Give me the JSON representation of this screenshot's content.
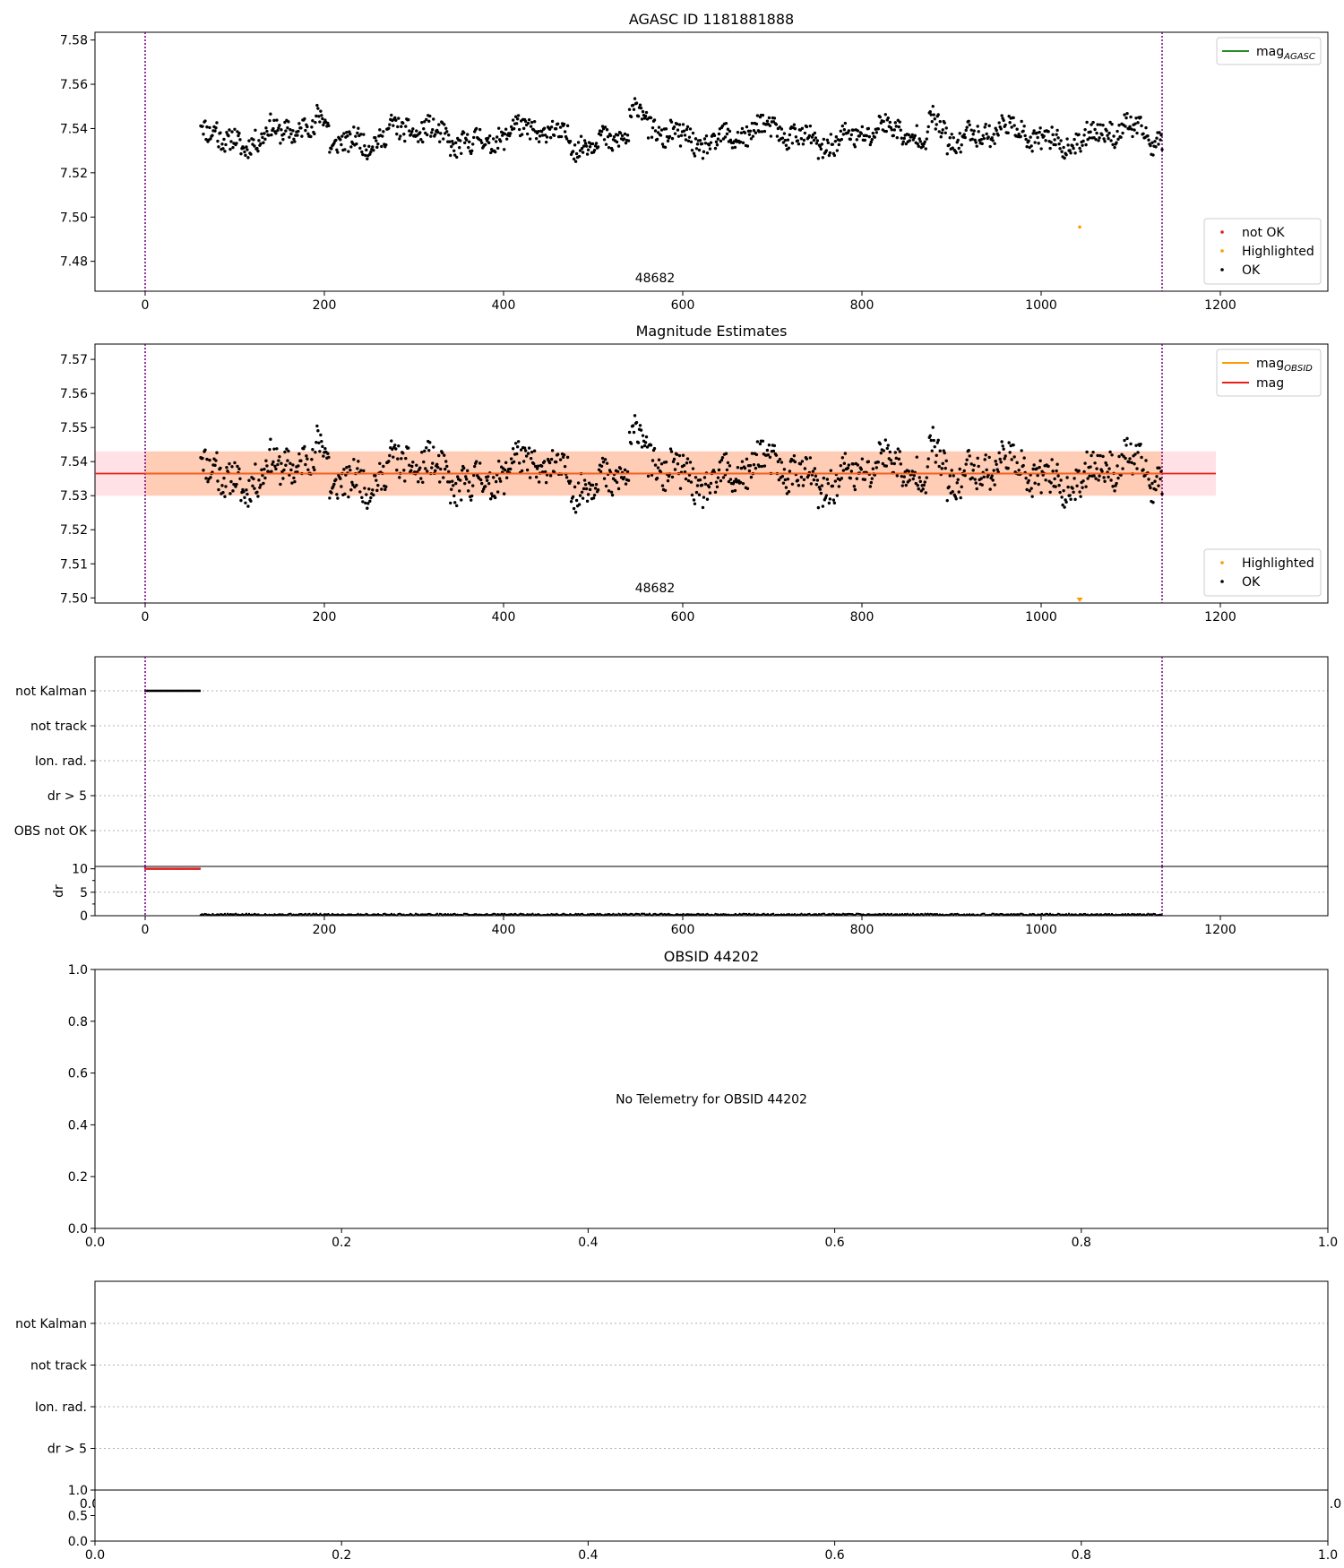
{
  "chart_data": [
    {
      "id": "p1",
      "type": "scatter",
      "title": "AGASC ID 1181881888",
      "xlim": [
        -56,
        1320
      ],
      "ylim": [
        7.4665,
        7.5835
      ],
      "xticks": [
        0,
        200,
        400,
        600,
        800,
        1000,
        1200
      ],
      "yticks": [
        7.48,
        7.5,
        7.52,
        7.54,
        7.56,
        7.58
      ],
      "ytick_format": 2,
      "vlines": [
        0,
        1135
      ],
      "annotation": {
        "text": "48682",
        "x": 569,
        "y": 7.4705
      },
      "line_legend": [
        {
          "label": "mag",
          "sub": "AGASC",
          "color": "#2a8a2a"
        }
      ],
      "point_legend": [
        {
          "label": "not OK",
          "color": "#e02020"
        },
        {
          "label": "Highlighted",
          "color": "#ff9900"
        },
        {
          "label": "OK",
          "color": "#000000"
        }
      ],
      "series": {
        "ok": {
          "x_start": 62,
          "x_end": 1135,
          "n": 1075,
          "center": 7.5365,
          "amp": 0.009,
          "seed": 11
        },
        "highlighted": [
          {
            "x": 1043,
            "y": 7.4955
          }
        ]
      },
      "grid": false
    },
    {
      "id": "p2",
      "type": "scatter",
      "title": "Magnitude Estimates",
      "xlim": [
        -56,
        1320
      ],
      "ylim": [
        7.4985,
        7.5745
      ],
      "xticks": [
        0,
        200,
        400,
        600,
        800,
        1000,
        1200
      ],
      "yticks": [
        7.5,
        7.51,
        7.52,
        7.53,
        7.54,
        7.55,
        7.56,
        7.57
      ],
      "ytick_format": 2,
      "vlines": [
        0,
        1135
      ],
      "annotation": {
        "text": "48682",
        "x": 569,
        "y": 7.5017
      },
      "mag_line": {
        "value": 7.5365,
        "x0": -56,
        "x1": 1195,
        "band_lo": 7.53,
        "band_hi": 7.543,
        "color": "#e8201a"
      },
      "obsid_band": {
        "x0": 0,
        "x1": 1135,
        "lo": 7.53,
        "hi": 7.543
      },
      "line_legend": [
        {
          "label": "mag",
          "sub": "OBSID",
          "color": "#ff9900"
        },
        {
          "label": "mag",
          "sub": "",
          "color": "#e8201a"
        }
      ],
      "point_legend": [
        {
          "label": "Highlighted",
          "color": "#ff9900"
        },
        {
          "label": "OK",
          "color": "#000000"
        }
      ],
      "series": {
        "ok": {
          "x_start": 62,
          "x_end": 1135,
          "n": 1075,
          "center": 7.5365,
          "amp": 0.009,
          "seed": 11
        },
        "highlighted": [
          {
            "x": 1043,
            "y": 7.4993
          }
        ]
      },
      "grid": false
    },
    {
      "id": "p3",
      "type": "scatter",
      "xlim": [
        -56,
        1320
      ],
      "categories": [
        "not Kalman",
        "not track",
        "Ion. rad.",
        "dr > 5",
        "OBS not OK"
      ],
      "xticks": [
        0,
        200,
        400,
        600,
        800,
        1000,
        1200
      ],
      "vlines": [
        0,
        1135
      ],
      "flags": {
        "not Kalman": {
          "x0": 0,
          "x1": 62
        }
      },
      "dr": {
        "ylabel": "dr",
        "ylim": [
          0,
          10.5
        ],
        "yticks": [
          0,
          5,
          10
        ],
        "red": {
          "x0": 0,
          "x1": 62,
          "value": 10
        },
        "black": {
          "x0": 62,
          "x1": 1135,
          "value": 0.25
        }
      },
      "grid": true
    },
    {
      "id": "p4",
      "type": "scatter",
      "title": "OBSID 44202",
      "xlim": [
        0,
        1
      ],
      "ylim": [
        0,
        1
      ],
      "xticks": [
        0.0,
        0.2,
        0.4,
        0.6,
        0.8,
        1.0
      ],
      "yticks": [
        0.0,
        0.2,
        0.4,
        0.6,
        0.8,
        1.0
      ],
      "ytick_format": 1,
      "message": "No Telemetry for OBSID 44202",
      "grid": false
    },
    {
      "id": "p5",
      "type": "scatter",
      "xlim": [
        0,
        1
      ],
      "categories": [
        "not Kalman",
        "not track",
        "Ion. rad.",
        "dr > 5"
      ],
      "edge_labels": [
        "0.0",
        "1.0"
      ],
      "lower": {
        "ylim": [
          0,
          1
        ],
        "yticks": [
          0.0,
          0.5,
          1.0
        ],
        "xticks": [
          0.0,
          0.2,
          0.4,
          0.6,
          0.8,
          1.0
        ]
      },
      "grid": true
    }
  ]
}
